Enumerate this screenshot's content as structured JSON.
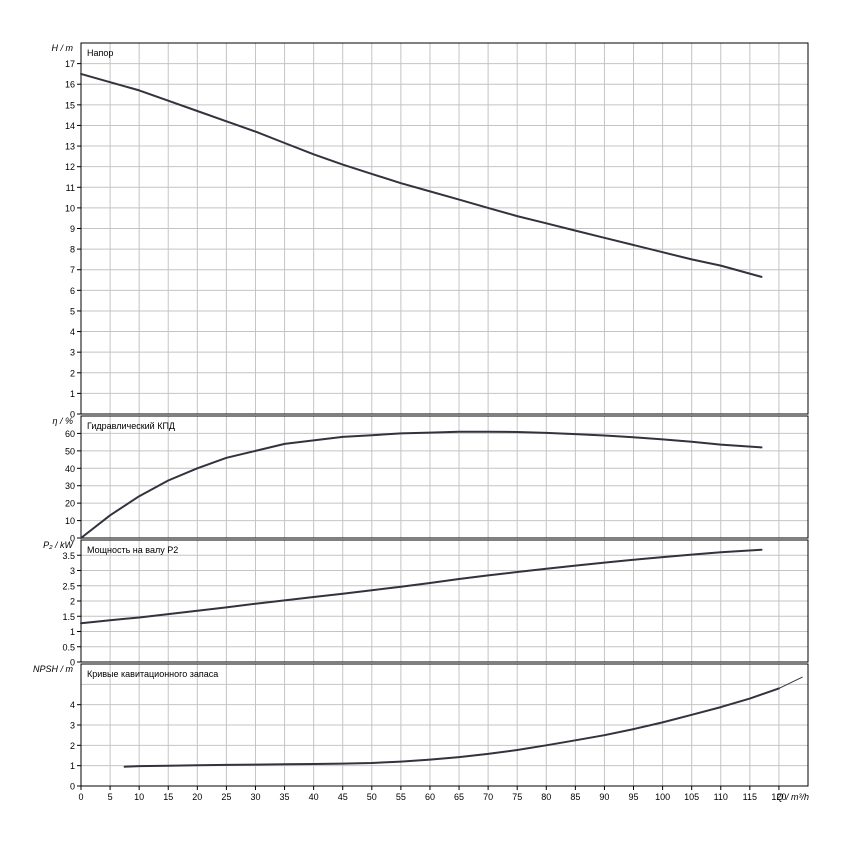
{
  "x_axis": {
    "ticks": [
      "0",
      "5",
      "10",
      "15",
      "20",
      "25",
      "30",
      "35",
      "40",
      "45",
      "50",
      "55",
      "60",
      "65",
      "70",
      "75",
      "80",
      "85",
      "90",
      "95",
      "100",
      "105",
      "110",
      "115",
      "120"
    ],
    "unit_label": "Q / m³/h",
    "range": [
      0,
      125
    ]
  },
  "colors": {
    "curve": "#333340",
    "grid": "#c4c4c4",
    "axis": "#000000"
  },
  "chart_data": [
    {
      "type": "line",
      "panel": "head",
      "title": "Напор",
      "ylabel": "H / m",
      "ylim": [
        0,
        18
      ],
      "yticks": [
        "0",
        "1",
        "2",
        "3",
        "4",
        "5",
        "6",
        "7",
        "8",
        "9",
        "10",
        "11",
        "12",
        "13",
        "14",
        "15",
        "16",
        "17"
      ],
      "series": [
        {
          "x": [
            0,
            5,
            10,
            15,
            20,
            25,
            30,
            35,
            40,
            45,
            50,
            55,
            60,
            65,
            70,
            75,
            80,
            85,
            90,
            95,
            100,
            105,
            110,
            117
          ],
          "y": [
            16.5,
            16.1,
            15.7,
            15.2,
            14.7,
            14.2,
            13.7,
            13.15,
            12.6,
            12.1,
            11.65,
            11.2,
            10.8,
            10.4,
            10.0,
            9.6,
            9.25,
            8.9,
            8.55,
            8.2,
            7.85,
            7.5,
            7.2,
            6.65
          ]
        }
      ]
    },
    {
      "type": "line",
      "panel": "efficiency",
      "title": "Гидравлический КПД",
      "ylabel": "η / %",
      "ylim": [
        0,
        70
      ],
      "yticks": [
        "0",
        "10",
        "20",
        "30",
        "40",
        "50",
        "60"
      ],
      "series": [
        {
          "x": [
            0,
            5,
            10,
            15,
            20,
            25,
            30,
            35,
            40,
            45,
            50,
            55,
            60,
            65,
            70,
            75,
            80,
            85,
            90,
            95,
            100,
            105,
            110,
            117
          ],
          "y": [
            0,
            13,
            24,
            33,
            40,
            46,
            50,
            54,
            56,
            58,
            59,
            60,
            60.5,
            61,
            61,
            60.8,
            60.3,
            59.6,
            58.8,
            57.8,
            56.6,
            55.2,
            53.6,
            52
          ]
        }
      ]
    },
    {
      "type": "line",
      "panel": "power",
      "title": "Мощность на валу P2",
      "ylabel": "P₂ / kW",
      "ylim": [
        0,
        4
      ],
      "yticks": [
        "0",
        "0.5",
        "1",
        "1.5",
        "2",
        "2.5",
        "3",
        "3.5"
      ],
      "series": [
        {
          "x": [
            0,
            5,
            10,
            15,
            20,
            25,
            30,
            35,
            40,
            45,
            50,
            55,
            60,
            65,
            70,
            75,
            80,
            85,
            90,
            95,
            100,
            105,
            110,
            117
          ],
          "y": [
            1.27,
            1.37,
            1.46,
            1.57,
            1.68,
            1.79,
            1.91,
            2.02,
            2.13,
            2.24,
            2.35,
            2.47,
            2.59,
            2.72,
            2.84,
            2.95,
            3.06,
            3.16,
            3.26,
            3.35,
            3.44,
            3.52,
            3.6,
            3.68
          ]
        }
      ]
    },
    {
      "type": "line",
      "panel": "npsh",
      "title": "Кривые кавитационного запаса",
      "ylabel": "NPSH / m",
      "ylim": [
        0,
        6
      ],
      "yticks": [
        "0",
        "1",
        "2",
        "3",
        "4"
      ],
      "series": [
        {
          "x": [
            7.5,
            10,
            15,
            20,
            25,
            30,
            35,
            40,
            45,
            50,
            55,
            60,
            65,
            70,
            75,
            80,
            85,
            90,
            95,
            100,
            105,
            110,
            115,
            120
          ],
          "y": [
            0.95,
            0.98,
            1.0,
            1.02,
            1.04,
            1.05,
            1.07,
            1.08,
            1.1,
            1.13,
            1.2,
            1.3,
            1.42,
            1.58,
            1.77,
            2.0,
            2.25,
            2.5,
            2.8,
            3.13,
            3.5,
            3.88,
            4.3,
            4.8
          ]
        },
        {
          "x": [
            120,
            124
          ],
          "y": [
            4.8,
            5.35
          ]
        }
      ]
    }
  ]
}
